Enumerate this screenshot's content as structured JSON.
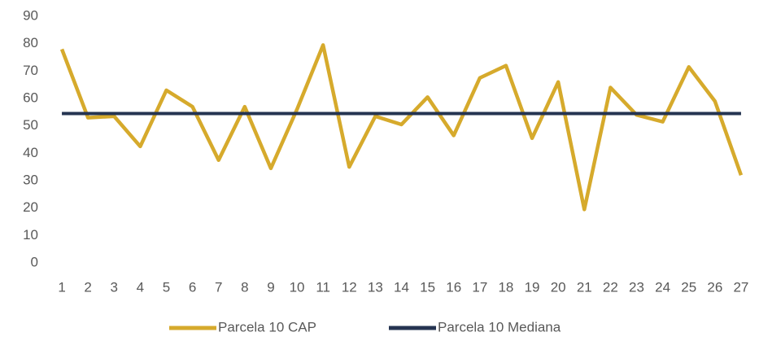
{
  "chart_data": {
    "type": "line",
    "categories": [
      "1",
      "2",
      "3",
      "4",
      "5",
      "6",
      "7",
      "8",
      "9",
      "10",
      "11",
      "12",
      "13",
      "14",
      "15",
      "16",
      "17",
      "18",
      "19",
      "20",
      "21",
      "22",
      "23",
      "24",
      "25",
      "26",
      "27"
    ],
    "series": [
      {
        "name": "Parcela 10 CAP",
        "color": "#d6aa2c",
        "values": [
          78,
          53,
          53.5,
          42.5,
          63,
          57,
          37.5,
          57,
          34.5,
          56,
          79.5,
          35,
          53.5,
          50.5,
          60.5,
          46.5,
          67.5,
          72,
          45.5,
          66,
          19.5,
          64,
          54,
          51.5,
          71.5,
          59,
          32
        ]
      },
      {
        "name": "Parcela 10 Mediana",
        "color": "#253451",
        "values": [
          54.5,
          54.5,
          54.5,
          54.5,
          54.5,
          54.5,
          54.5,
          54.5,
          54.5,
          54.5,
          54.5,
          54.5,
          54.5,
          54.5,
          54.5,
          54.5,
          54.5,
          54.5,
          54.5,
          54.5,
          54.5,
          54.5,
          54.5,
          54.5,
          54.5,
          54.5,
          54.5
        ]
      }
    ],
    "ylim": [
      0,
      90
    ],
    "yticks": [
      0,
      10,
      20,
      30,
      40,
      50,
      60,
      70,
      80,
      90
    ],
    "grid": false,
    "legend": "bottom"
  }
}
